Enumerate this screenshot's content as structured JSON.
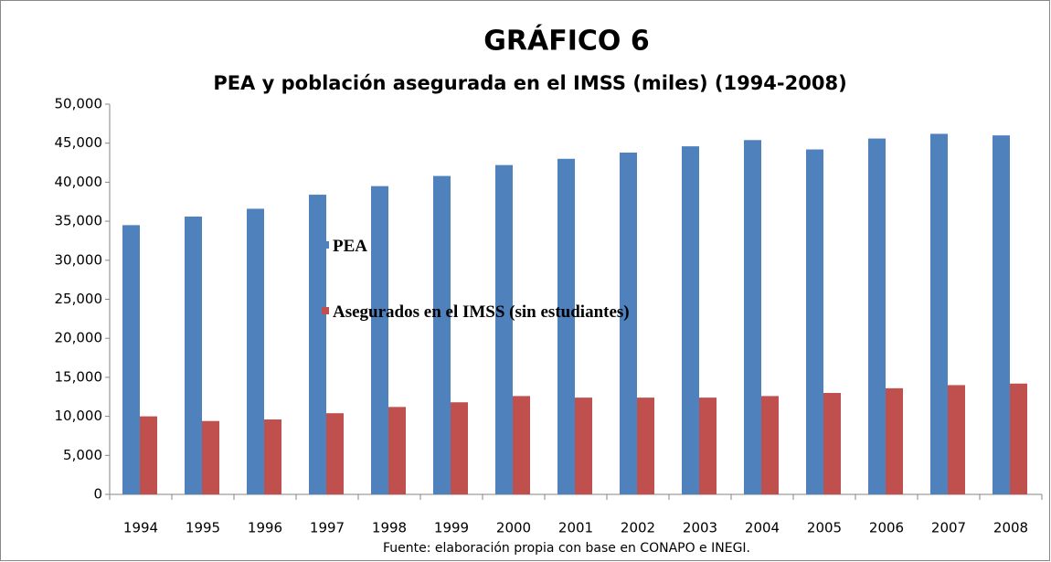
{
  "chart_data": {
    "type": "bar",
    "title": "GRÁFICO 6",
    "subtitle": "PEA y población asegurada en el IMSS (miles) (1994-2008)",
    "source": "Fuente: elaboración propia con base en CONAPO e INEGI.",
    "categories": [
      "1994",
      "1995",
      "1996",
      "1997",
      "1998",
      "1999",
      "2000",
      "2001",
      "2002",
      "2003",
      "2004",
      "2005",
      "2006",
      "2007",
      "2008"
    ],
    "series": [
      {
        "name": "PEA",
        "color": "#4f81bd",
        "values": [
          34500,
          35600,
          36600,
          38400,
          39500,
          40800,
          42200,
          43000,
          43800,
          44600,
          45400,
          44200,
          45600,
          46200,
          46000
        ]
      },
      {
        "name": "Asegurados en el IMSS (sin estudiantes)",
        "color": "#c0504d",
        "values": [
          10000,
          9400,
          9600,
          10400,
          11200,
          11800,
          12600,
          12400,
          12400,
          12400,
          12600,
          13000,
          13600,
          14000,
          14200
        ]
      }
    ],
    "ylim": [
      0,
      50000
    ],
    "yticks": [
      0,
      {
        "value": 5000,
        "label": "5,000"
      },
      {
        "value": 10000,
        "label": "10,000"
      },
      {
        "value": 15000,
        "label": "15,000"
      },
      {
        "value": 20000,
        "label": "20,000"
      },
      {
        "value": 25000,
        "label": "25,000"
      },
      {
        "value": 30000,
        "label": "30,000"
      },
      {
        "value": 35000,
        "label": "35,000"
      },
      {
        "value": 40000,
        "label": "40,000"
      },
      {
        "value": 45000,
        "label": "45,000"
      },
      {
        "value": 50000,
        "label": "50,000"
      }
    ],
    "legend": "inside"
  }
}
